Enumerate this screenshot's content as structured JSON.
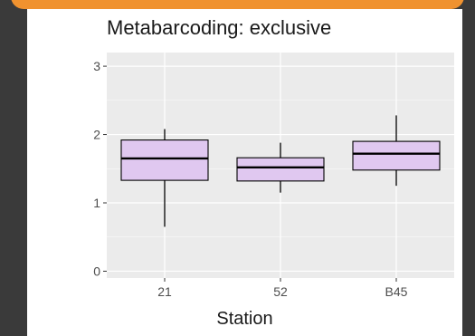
{
  "chart_data": {
    "type": "boxplot",
    "title": "Metabarcoding: exclusive",
    "xlabel": "Station",
    "ylabel": "",
    "categories": [
      "21",
      "52",
      "B45"
    ],
    "yticks": [
      0,
      1,
      2,
      3
    ],
    "ylim": [
      -0.1,
      3.2
    ],
    "grid": true,
    "boxes": [
      {
        "category": "21",
        "min": 0.65,
        "q1": 1.33,
        "median": 1.65,
        "q3": 1.92,
        "max": 2.08
      },
      {
        "category": "52",
        "min": 1.15,
        "q1": 1.32,
        "median": 1.52,
        "q3": 1.66,
        "max": 1.88
      },
      {
        "category": "B45",
        "min": 1.25,
        "q1": 1.48,
        "median": 1.72,
        "q3": 1.9,
        "max": 2.28
      }
    ],
    "box_fill": "#e0c8f0",
    "panel_bg": "#ebebeb",
    "grid_color": "#ffffff"
  },
  "colors": {
    "background": "#3a3a3a",
    "accent": "#f0922f",
    "card": "#ffffff"
  }
}
